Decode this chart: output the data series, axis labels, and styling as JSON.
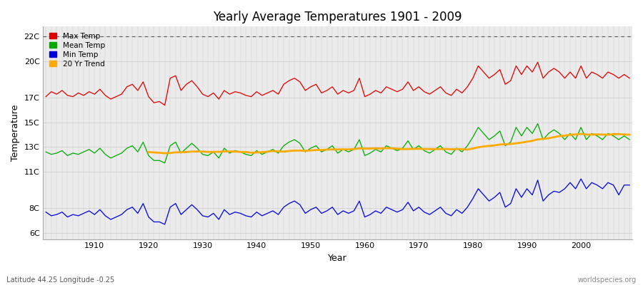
{
  "title": "Yearly Average Temperatures 1901 - 2009",
  "xlabel": "Year",
  "ylabel": "Temperature",
  "subtitle_left": "Latitude 44.25 Longitude -0.25",
  "subtitle_right": "worldspecies.org",
  "year_start": 1901,
  "year_end": 2009,
  "ylim": [
    5.5,
    22.8
  ],
  "xlim": [
    1900.5,
    2009.5
  ],
  "fig_bg_color": "#ffffff",
  "plot_bg_color": "#ebebeb",
  "max_temp_color": "#dd0000",
  "mean_temp_color": "#00aa00",
  "min_temp_color": "#0000dd",
  "trend_color": "#ffaa00",
  "dotted_line_y": 22,
  "legend_labels": [
    "Max Temp",
    "Mean Temp",
    "Min Temp",
    "20 Yr Trend"
  ],
  "legend_colors": [
    "#dd0000",
    "#00aa00",
    "#0000dd",
    "#ffaa00"
  ],
  "ytick_positions": [
    6,
    8,
    11,
    13,
    15,
    17,
    20,
    22
  ],
  "ytick_labels": [
    "6C",
    "8C",
    "11C",
    "13C",
    "15C",
    "17C",
    "20C",
    "22C"
  ],
  "max_temp": [
    17.1,
    17.5,
    17.3,
    17.6,
    17.2,
    17.1,
    17.4,
    17.2,
    17.5,
    17.3,
    17.7,
    17.2,
    16.9,
    17.1,
    17.3,
    17.9,
    18.1,
    17.6,
    18.3,
    17.1,
    16.6,
    16.7,
    16.4,
    18.6,
    18.8,
    17.6,
    18.1,
    18.4,
    17.9,
    17.3,
    17.1,
    17.4,
    16.9,
    17.6,
    17.3,
    17.5,
    17.4,
    17.2,
    17.1,
    17.5,
    17.2,
    17.4,
    17.6,
    17.3,
    18.1,
    18.4,
    18.6,
    18.3,
    17.6,
    17.9,
    18.1,
    17.4,
    17.6,
    17.9,
    17.3,
    17.6,
    17.4,
    17.6,
    18.6,
    17.1,
    17.3,
    17.6,
    17.4,
    17.9,
    17.7,
    17.5,
    17.7,
    18.3,
    17.6,
    17.9,
    17.5,
    17.3,
    17.6,
    17.9,
    17.4,
    17.2,
    17.7,
    17.4,
    17.9,
    18.6,
    19.6,
    19.1,
    18.6,
    18.9,
    19.3,
    18.1,
    18.4,
    19.6,
    18.9,
    19.6,
    19.1,
    19.9,
    18.6,
    19.1,
    19.4,
    19.1,
    18.6,
    19.1,
    18.6,
    19.6,
    18.6,
    19.1,
    18.9,
    18.6,
    19.1,
    18.9,
    18.6,
    18.9,
    18.6
  ],
  "mean_temp": [
    12.6,
    12.4,
    12.5,
    12.7,
    12.3,
    12.5,
    12.4,
    12.6,
    12.8,
    12.5,
    12.9,
    12.4,
    12.1,
    12.3,
    12.5,
    12.9,
    13.1,
    12.6,
    13.4,
    12.3,
    11.9,
    11.9,
    11.7,
    13.1,
    13.4,
    12.5,
    12.9,
    13.3,
    12.9,
    12.4,
    12.3,
    12.6,
    12.1,
    12.9,
    12.5,
    12.7,
    12.6,
    12.4,
    12.3,
    12.7,
    12.4,
    12.6,
    12.8,
    12.5,
    13.1,
    13.4,
    13.6,
    13.3,
    12.6,
    12.9,
    13.1,
    12.6,
    12.8,
    13.1,
    12.5,
    12.8,
    12.6,
    12.8,
    13.6,
    12.3,
    12.5,
    12.8,
    12.6,
    13.1,
    12.9,
    12.7,
    12.9,
    13.5,
    12.8,
    13.1,
    12.7,
    12.5,
    12.8,
    13.1,
    12.6,
    12.4,
    12.9,
    12.6,
    13.1,
    13.8,
    14.6,
    14.1,
    13.6,
    13.9,
    14.3,
    13.1,
    13.4,
    14.6,
    13.9,
    14.6,
    14.1,
    14.9,
    13.6,
    14.1,
    14.4,
    14.1,
    13.6,
    14.1,
    13.6,
    14.6,
    13.6,
    14.1,
    13.9,
    13.6,
    14.1,
    13.9,
    13.6,
    13.9,
    13.6
  ],
  "min_temp": [
    7.7,
    7.4,
    7.5,
    7.7,
    7.3,
    7.5,
    7.4,
    7.6,
    7.8,
    7.5,
    7.9,
    7.4,
    7.1,
    7.3,
    7.5,
    7.9,
    8.1,
    7.6,
    8.4,
    7.3,
    6.9,
    6.9,
    6.7,
    8.1,
    8.4,
    7.5,
    7.9,
    8.3,
    7.9,
    7.4,
    7.3,
    7.6,
    7.1,
    7.9,
    7.5,
    7.7,
    7.6,
    7.4,
    7.3,
    7.7,
    7.4,
    7.6,
    7.8,
    7.5,
    8.1,
    8.4,
    8.6,
    8.3,
    7.6,
    7.9,
    8.1,
    7.6,
    7.8,
    8.1,
    7.5,
    7.8,
    7.6,
    7.8,
    8.6,
    7.3,
    7.5,
    7.8,
    7.6,
    8.1,
    7.9,
    7.7,
    7.9,
    8.5,
    7.8,
    8.1,
    7.7,
    7.5,
    7.8,
    8.1,
    7.6,
    7.4,
    7.9,
    7.6,
    8.1,
    8.8,
    9.6,
    9.1,
    8.6,
    8.9,
    9.3,
    8.1,
    8.4,
    9.6,
    8.9,
    9.6,
    9.1,
    10.3,
    8.6,
    9.1,
    9.4,
    9.3,
    9.6,
    10.1,
    9.6,
    10.4,
    9.6,
    10.1,
    9.9,
    9.6,
    10.1,
    9.9,
    9.1,
    9.9,
    9.9
  ]
}
